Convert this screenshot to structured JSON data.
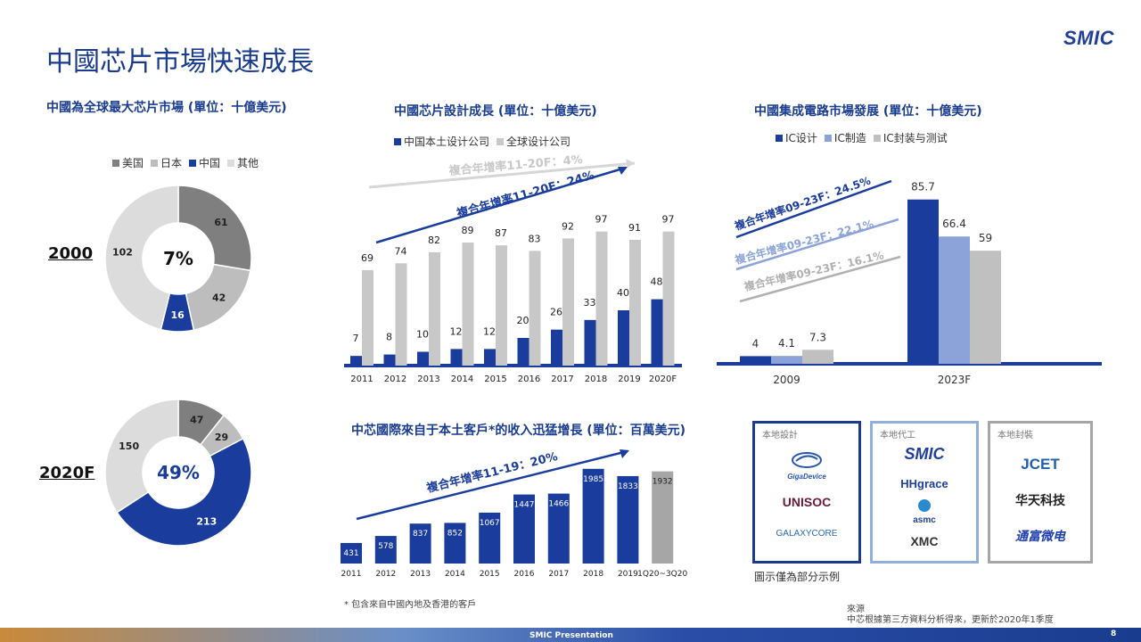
{
  "page": {
    "title": "中國芯片市場快速成長",
    "logo": "SMIC",
    "footer": "SMIC Presentation",
    "page_no": "8"
  },
  "donuts": {
    "subtitle": "中國為全球最大芯片市場 (單位：十億美元)",
    "legend": [
      {
        "name": "美国",
        "color": "#7f7f7f"
      },
      {
        "name": "日本",
        "color": "#bdbdbd"
      },
      {
        "name": "中国",
        "color": "#1a3c9c"
      },
      {
        "name": "其他",
        "color": "#dcdcdc"
      }
    ],
    "items": [
      {
        "year": "2000",
        "center": "7%",
        "order": [
          "美国",
          "日本",
          "中国",
          "其他"
        ],
        "values": [
          61,
          42,
          16,
          102
        ]
      },
      {
        "year": "2020F",
        "center": "49%",
        "order": [
          "美国",
          "日本",
          "中国",
          "其他"
        ],
        "values": [
          47,
          29,
          213,
          150
        ]
      }
    ]
  },
  "chart_data": [
    {
      "type": "bar",
      "title": "中國芯片設計成長 (單位：十億美元)",
      "categories": [
        "2011",
        "2012",
        "2013",
        "2014",
        "2015",
        "2016",
        "2017",
        "2018",
        "2019",
        "2020F"
      ],
      "series": [
        {
          "name": "中国本土设计公司",
          "color": "#1a3c9c",
          "values": [
            7,
            8,
            10,
            12,
            12,
            20,
            26,
            33,
            40,
            48
          ]
        },
        {
          "name": "全球设计公司",
          "color": "#c8c8c8",
          "values": [
            69,
            74,
            82,
            89,
            87,
            83,
            92,
            97,
            91,
            97
          ]
        }
      ],
      "annotations": [
        "複合年增率11-20F：4%",
        "複合年增率11-20F：24%"
      ]
    },
    {
      "type": "bar",
      "title": "中國集成電路市場發展 (單位：十億美元)",
      "categories": [
        "2009",
        "2023F"
      ],
      "series": [
        {
          "name": "IC设计",
          "color": "#1a3c9c",
          "values": [
            4,
            85.7
          ]
        },
        {
          "name": "IC制造",
          "color": "#8ba3d8",
          "values": [
            4.1,
            66.4
          ]
        },
        {
          "name": "IC封装与测试",
          "color": "#c0c0c0",
          "values": [
            7.3,
            59
          ]
        }
      ],
      "annotations": [
        "複合年增率09-23F：24.5%",
        "複合年增率09-23F：22.1%",
        "複合年增率09-23F：16.1%"
      ]
    },
    {
      "type": "bar",
      "title": "中芯國際來自于本土客戶*的收入迅猛增長  (單位：百萬美元)",
      "categories": [
        "2011",
        "2012",
        "2013",
        "2014",
        "2015",
        "2016",
        "2017",
        "2018",
        "2019",
        "1Q20~3Q20"
      ],
      "series": [
        {
          "values": [
            431,
            578,
            837,
            852,
            1067,
            1447,
            1466,
            1985,
            1833,
            1932
          ]
        }
      ],
      "bar_colors": [
        "#1a3c9c",
        "#1a3c9c",
        "#1a3c9c",
        "#1a3c9c",
        "#1a3c9c",
        "#1a3c9c",
        "#1a3c9c",
        "#1a3c9c",
        "#1a3c9c",
        "#a6a6a6"
      ],
      "annotations": [
        "複合年增率11-19：20%"
      ],
      "footnote": "* 包含來自中國內地及香港的客戶"
    }
  ],
  "partners": {
    "groups": [
      {
        "label": "本地設計",
        "color": "#1a3c8f",
        "companies": [
          "GigaDevice",
          "UNISOC",
          "GALAXYCORE"
        ]
      },
      {
        "label": "本地代工",
        "color": "#8fb0dc",
        "companies": [
          "SMIC",
          "HHgrace",
          "asmc",
          "XMC"
        ]
      },
      {
        "label": "本地封裝",
        "color": "#a6a6a6",
        "companies": [
          "JCET",
          "华天科技",
          "通富微电"
        ]
      }
    ],
    "caption": "圖示僅為部分示例"
  },
  "source": {
    "label": "來源",
    "text": "中芯根據第三方資料分析得來，更新於2020年1季度"
  }
}
